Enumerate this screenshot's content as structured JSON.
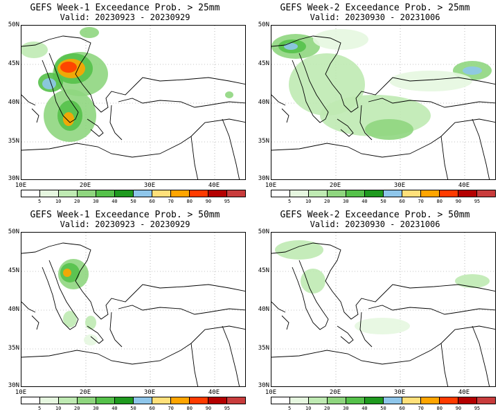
{
  "panels": [
    {
      "title": "GEFS Week-1 Exceedance Prob. > 25mm",
      "valid": "Valid: 20230923 - 20230929"
    },
    {
      "title": "GEFS Week-2 Exceedance Prob. > 25mm",
      "valid": "Valid: 20230930 - 20231006"
    },
    {
      "title": "GEFS Week-1 Exceedance Prob. > 50mm",
      "valid": "Valid: 20230923 - 20230929"
    },
    {
      "title": "GEFS Week-2 Exceedance Prob. > 50mm",
      "valid": "Valid: 20230930 - 20231006"
    }
  ],
  "axes": {
    "lat_labels": [
      "50N",
      "45N",
      "40N",
      "35N",
      "30N"
    ],
    "lon_labels": [
      "10E",
      "20E",
      "30E",
      "40E"
    ],
    "lat_range": [
      30,
      50
    ],
    "lon_range": [
      10,
      45
    ]
  },
  "colorbar": {
    "labels": [
      "5",
      "10",
      "20",
      "30",
      "40",
      "50",
      "60",
      "70",
      "80",
      "90",
      "95"
    ],
    "colors": [
      "#ffffff",
      "#e6f7e0",
      "#bfeab3",
      "#8fd67f",
      "#55c14a",
      "#1f9a1f",
      "#8ec6ea",
      "#ffe07a",
      "#ffa500",
      "#ff3b00",
      "#b40000",
      "#c83c3c"
    ]
  },
  "colors": {
    "land_border": "#000000",
    "grid": "#888888"
  }
}
